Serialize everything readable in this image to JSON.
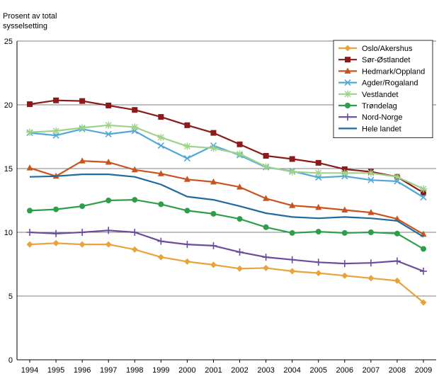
{
  "chart_data": {
    "type": "line",
    "title": "",
    "ylabel": "Prosent av total sysselsetting",
    "ylabel_lines": [
      "Prosent av total",
      "sysselsetting"
    ],
    "xlabel": "",
    "ylim": [
      0,
      25
    ],
    "yticks": [
      0,
      5,
      10,
      15,
      20,
      25
    ],
    "grid": true,
    "legend_position": "top-right",
    "categories": [
      "1994",
      "1995",
      "1996",
      "1997",
      "1998",
      "1999",
      "2000",
      "2001",
      "2002",
      "2003",
      "2004",
      "2005",
      "2006",
      "2007",
      "2008",
      "2009"
    ],
    "series": [
      {
        "name": "Oslo/Akershus",
        "color": "#e8a33d",
        "marker": "diamond",
        "values": [
          9.05,
          9.15,
          9.05,
          9.05,
          8.65,
          8.05,
          7.7,
          7.45,
          7.15,
          7.2,
          6.95,
          6.8,
          6.6,
          6.4,
          6.2,
          4.5
        ]
      },
      {
        "name": "Sør-Østlandet",
        "color": "#8b1a1a",
        "marker": "square",
        "values": [
          20.05,
          20.35,
          20.3,
          19.95,
          19.6,
          19.05,
          18.4,
          17.8,
          16.9,
          16.0,
          15.75,
          15.45,
          14.95,
          14.75,
          14.35,
          13.1
        ]
      },
      {
        "name": "Hedmark/Oppland",
        "color": "#c8531e",
        "marker": "triangle",
        "values": [
          15.05,
          14.4,
          15.6,
          15.5,
          14.9,
          14.6,
          14.15,
          13.95,
          13.55,
          12.65,
          12.1,
          11.95,
          11.75,
          11.55,
          11.05,
          9.85
        ]
      },
      {
        "name": "Agder/Rogaland",
        "color": "#4fa8d8",
        "marker": "x",
        "values": [
          17.8,
          17.6,
          18.1,
          17.7,
          17.95,
          16.8,
          15.8,
          16.8,
          16.05,
          15.1,
          14.8,
          14.3,
          14.4,
          14.1,
          14.0,
          12.75
        ]
      },
      {
        "name": "Vestlandet",
        "color": "#9ed28a",
        "marker": "asterisk",
        "values": [
          17.85,
          17.95,
          18.2,
          18.4,
          18.25,
          17.45,
          16.75,
          16.6,
          16.15,
          15.15,
          14.75,
          14.65,
          14.65,
          14.65,
          14.35,
          13.4
        ]
      },
      {
        "name": "Trøndelag",
        "color": "#2e9e4a",
        "marker": "circle",
        "values": [
          11.7,
          11.8,
          12.05,
          12.5,
          12.55,
          12.2,
          11.7,
          11.45,
          11.05,
          10.4,
          9.95,
          10.05,
          9.95,
          10.0,
          9.9,
          8.7
        ]
      },
      {
        "name": "Nord-Norge",
        "color": "#6a4c9c",
        "marker": "plus",
        "values": [
          10.0,
          9.9,
          10.0,
          10.15,
          10.0,
          9.3,
          9.05,
          8.95,
          8.45,
          8.05,
          7.85,
          7.65,
          7.55,
          7.6,
          7.75,
          6.95
        ]
      },
      {
        "name": "Hele landet",
        "color": "#1f6a9e",
        "marker": "none",
        "values": [
          14.35,
          14.4,
          14.55,
          14.55,
          14.35,
          13.75,
          12.8,
          12.55,
          12.05,
          11.5,
          11.2,
          11.1,
          11.2,
          11.1,
          10.9,
          9.65
        ]
      }
    ]
  }
}
